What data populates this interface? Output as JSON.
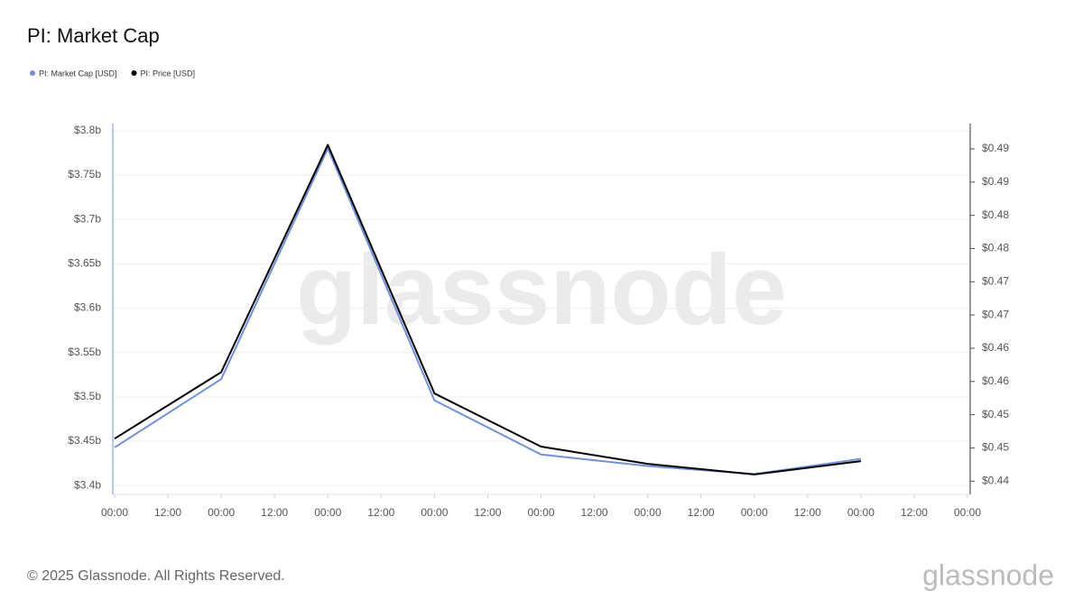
{
  "chart_data": {
    "type": "line",
    "title": "PI: Market Cap",
    "watermark": "glassnode",
    "footer": "© 2025 Glassnode. All Rights Reserved.",
    "logo": "glassnode",
    "x": [
      0,
      24,
      48,
      72,
      96,
      120,
      144,
      168
    ],
    "xlim": [
      0,
      192
    ],
    "xticks": [
      {
        "value": 0,
        "label": "00:00"
      },
      {
        "value": 12,
        "label": "12:00"
      },
      {
        "value": 24,
        "label": "00:00"
      },
      {
        "value": 36,
        "label": "12:00"
      },
      {
        "value": 48,
        "label": "00:00"
      },
      {
        "value": 60,
        "label": "12:00"
      },
      {
        "value": 72,
        "label": "00:00"
      },
      {
        "value": 84,
        "label": "12:00"
      },
      {
        "value": 96,
        "label": "00:00"
      },
      {
        "value": 108,
        "label": "12:00"
      },
      {
        "value": 120,
        "label": "00:00"
      },
      {
        "value": 132,
        "label": "12:00"
      },
      {
        "value": 144,
        "label": "00:00"
      },
      {
        "value": 156,
        "label": "12:00"
      },
      {
        "value": 168,
        "label": "00:00"
      },
      {
        "value": 180,
        "label": "12:00"
      },
      {
        "value": 192,
        "label": "00:00"
      }
    ],
    "ylim": [
      3.39,
      3.808
    ],
    "yticks": [
      {
        "value": 3.4,
        "label": "$3.4b"
      },
      {
        "value": 3.45,
        "label": "$3.45b"
      },
      {
        "value": 3.5,
        "label": "$3.5b"
      },
      {
        "value": 3.55,
        "label": "$3.55b"
      },
      {
        "value": 3.6,
        "label": "$3.6b"
      },
      {
        "value": 3.65,
        "label": "$3.65b"
      },
      {
        "value": 3.7,
        "label": "$3.7b"
      },
      {
        "value": 3.75,
        "label": "$3.75b"
      },
      {
        "value": 3.8,
        "label": "$3.8b"
      }
    ],
    "y2lim": [
      0.438,
      0.4938
    ],
    "y2ticks": [
      {
        "value": 0.44,
        "label": "$0.44"
      },
      {
        "value": 0.445,
        "label": "$0.45"
      },
      {
        "value": 0.45,
        "label": "$0.45"
      },
      {
        "value": 0.455,
        "label": "$0.46"
      },
      {
        "value": 0.46,
        "label": "$0.46"
      },
      {
        "value": 0.465,
        "label": "$0.47"
      },
      {
        "value": 0.47,
        "label": "$0.47"
      },
      {
        "value": 0.475,
        "label": "$0.48"
      },
      {
        "value": 0.48,
        "label": "$0.48"
      },
      {
        "value": 0.485,
        "label": "$0.49"
      },
      {
        "value": 0.49,
        "label": "$0.49"
      }
    ],
    "grid": true,
    "series": [
      {
        "name": "PI: Market Cap [USD]",
        "color": "#6f8fe0",
        "values": [
          3.443,
          3.52,
          3.78,
          3.496,
          3.435,
          3.422,
          3.413,
          3.43
        ]
      },
      {
        "name": "PI: Price [USD]",
        "color": "#000000",
        "axis": "y2",
        "values": [
          0.4464,
          0.4564,
          0.4906,
          0.4532,
          0.4452,
          0.4426,
          0.441,
          0.443
        ]
      }
    ]
  }
}
